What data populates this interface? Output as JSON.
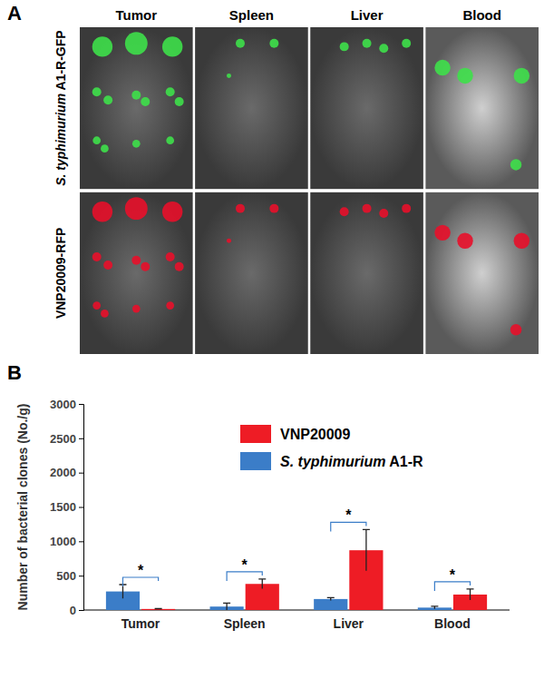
{
  "panel_a": {
    "label": "A",
    "columns": [
      "Tumor",
      "Spleen",
      "Liver",
      "Blood"
    ],
    "rows": [
      "S. typhimurium A1-R-GFP",
      "VNP20009-RFP"
    ]
  },
  "chart_data": {
    "type": "bar",
    "title": "B",
    "ylabel": "Number of bacterial clones (No./g)",
    "categories": [
      "Tumor",
      "Spleen",
      "Liver",
      "Blood"
    ],
    "series": [
      {
        "name": "VNP20009",
        "color": "#ee1c25",
        "values": [
          15,
          380,
          870,
          225
        ],
        "errors": [
          5,
          70,
          300,
          80
        ]
      },
      {
        "name": "S. typhimurium A1-R",
        "color": "#3b7dc8",
        "values": [
          270,
          50,
          160,
          35
        ],
        "errors": [
          100,
          50,
          20,
          20
        ]
      }
    ],
    "ylim": [
      0,
      3000
    ],
    "yticks": [
      0,
      500,
      1000,
      1500,
      2000,
      2500,
      3000
    ],
    "grid": false,
    "legend": "top",
    "annotations": [
      {
        "category": "Tumor",
        "label": "*"
      },
      {
        "category": "Spleen",
        "label": "*"
      },
      {
        "category": "Liver",
        "label": "*"
      },
      {
        "category": "Blood",
        "label": "*"
      }
    ]
  }
}
